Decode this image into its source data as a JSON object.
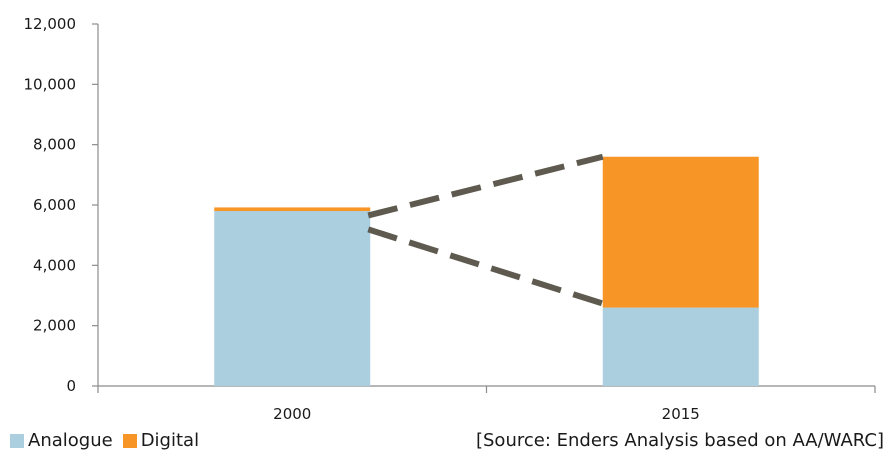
{
  "chart_data": {
    "type": "bar",
    "stacked": true,
    "categories": [
      "2000",
      "2015"
    ],
    "series": [
      {
        "name": "Analogue",
        "values": [
          5800,
          2600
        ],
        "color": "#abcfdf"
      },
      {
        "name": "Digital",
        "values": [
          120,
          5000
        ],
        "color": "#f79627"
      }
    ],
    "title": "",
    "xlabel": "",
    "ylabel": "",
    "ylim": [
      0,
      12000
    ],
    "yticks": [
      0,
      2000,
      4000,
      6000,
      8000,
      10000,
      12000
    ],
    "ytick_labels": [
      "0",
      "2,000",
      "4,000",
      "6,000",
      "8,000",
      "10,000",
      "12,000"
    ],
    "grid": false,
    "legend_position": "bottom-left",
    "annotation": "dashed connector lines from top of 2000 bar to top and to analogue segment of 2015 bar",
    "connector_color": "#5f5a4f",
    "source": "[Source: Enders Analysis based on AA/WARC]"
  }
}
